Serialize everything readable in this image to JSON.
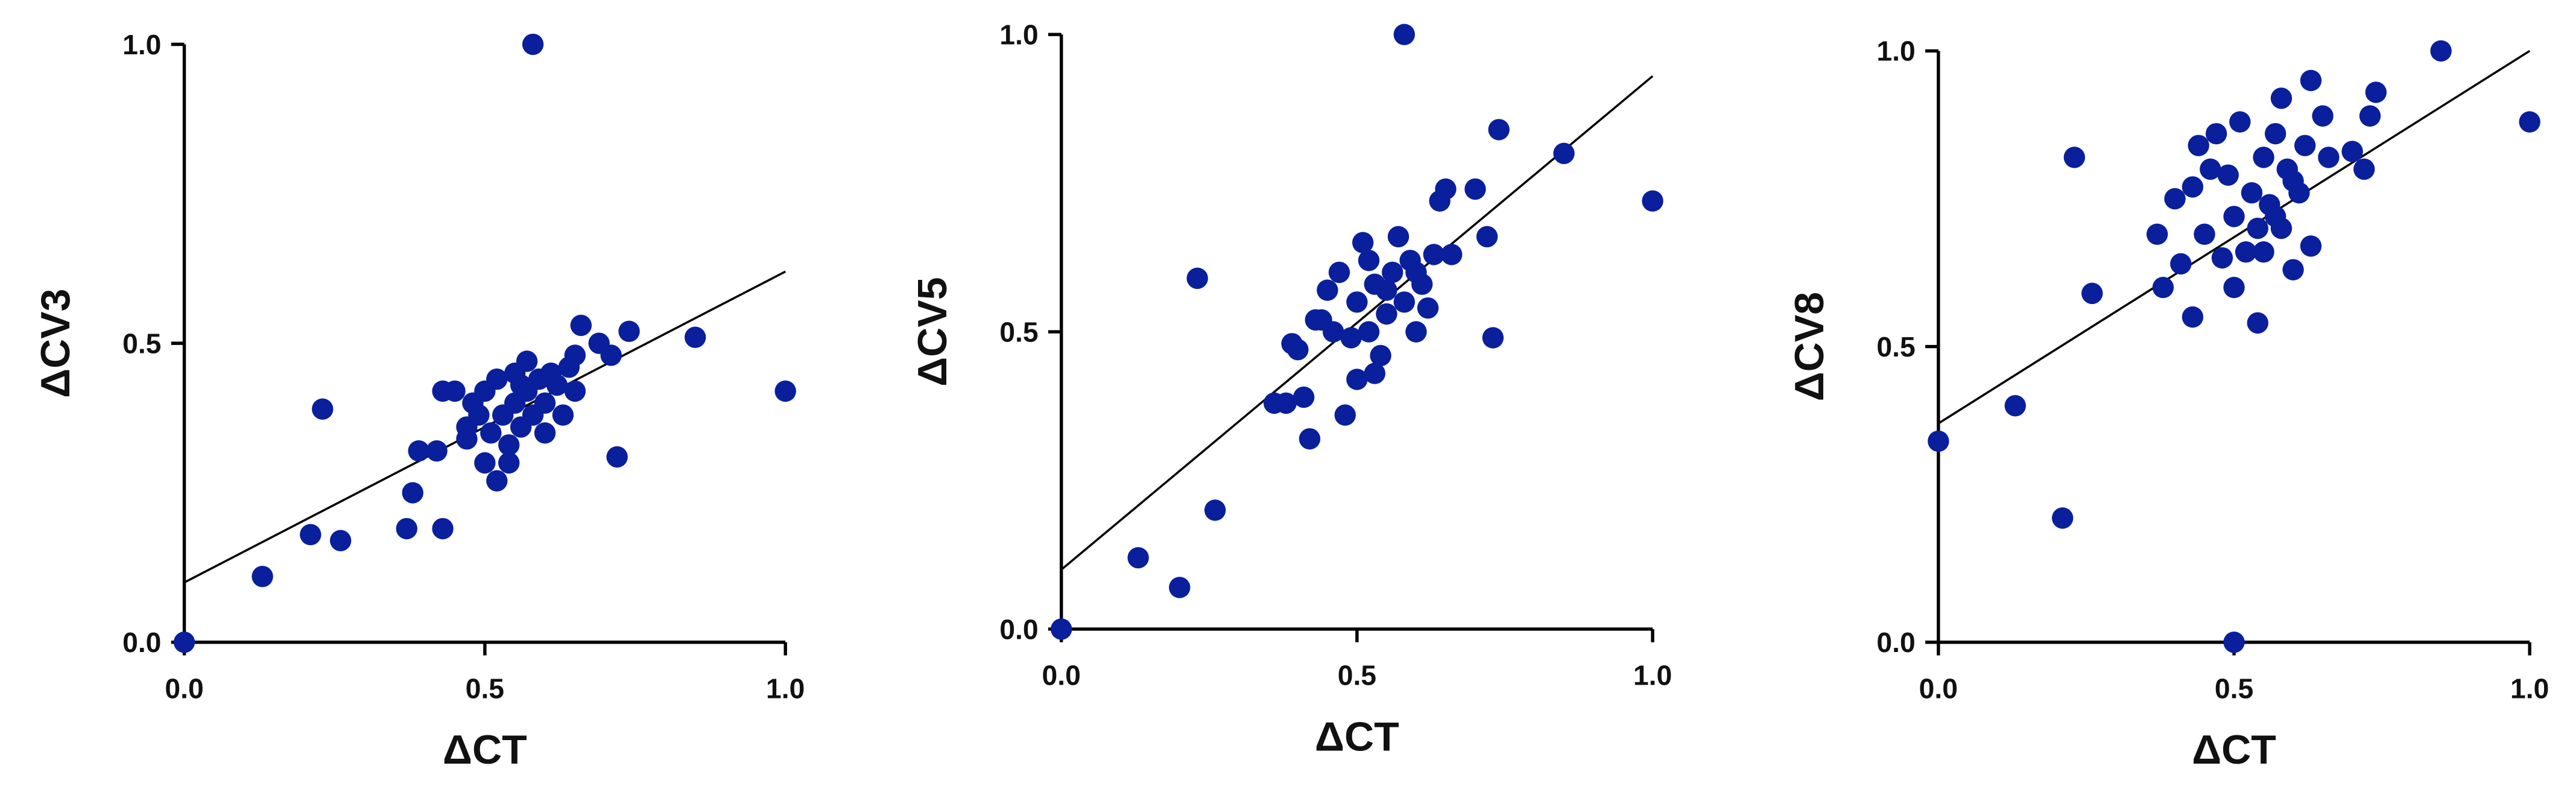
{
  "chart_data": [
    {
      "type": "scatter",
      "x_label": "ΔCT",
      "y_label": "ΔCV3",
      "color": "#0a1f9c",
      "xlim": [
        0,
        1
      ],
      "ylim": [
        0,
        1
      ],
      "xticks": [
        {
          "value": 0,
          "label": "0.0"
        },
        {
          "value": 0.5,
          "label": "0.5"
        },
        {
          "value": 1,
          "label": "1.0"
        }
      ],
      "yticks": [
        {
          "value": 0,
          "label": "0.0"
        },
        {
          "value": 0.5,
          "label": "0.5"
        },
        {
          "value": 1,
          "label": "1.0"
        }
      ],
      "x": [
        0,
        0.13,
        0.21,
        0.23,
        0.26,
        0.37,
        0.38,
        0.39,
        0.42,
        0.43,
        0.43,
        0.45,
        0.47,
        0.49,
        0.5,
        0.5,
        0.51,
        0.52,
        0.52,
        0.53,
        0.54,
        0.55,
        0.55,
        0.56,
        0.57,
        0.57,
        0.58,
        0.58,
        0.59,
        0.6,
        0.6,
        0.62,
        0.63,
        0.64,
        0.65,
        0.65,
        0.66,
        0.69,
        0.71,
        0.72,
        0.74,
        0.85,
        1.0,
        0.47,
        0.54,
        0.61,
        0.48,
        0.56
      ],
      "y": [
        0,
        0.11,
        0.18,
        0.39,
        0.17,
        0.19,
        0.25,
        0.32,
        0.32,
        0.19,
        0.42,
        0.42,
        0.34,
        0.38,
        0.42,
        0.3,
        0.35,
        0.27,
        0.44,
        0.38,
        0.3,
        0.4,
        0.45,
        0.36,
        0.47,
        0.42,
        1.0,
        0.38,
        0.44,
        0.35,
        0.4,
        0.43,
        0.38,
        0.46,
        0.48,
        0.42,
        0.53,
        0.5,
        0.48,
        0.31,
        0.52,
        0.51,
        0.42,
        0.36,
        0.33,
        0.45,
        0.4,
        0.43
      ],
      "trendline": {
        "x": [
          0,
          1
        ],
        "y": [
          0.1,
          0.62
        ]
      }
    },
    {
      "type": "scatter",
      "x_label": "ΔCT",
      "y_label": "ΔCV5",
      "color": "#0a1f9c",
      "xlim": [
        0,
        1
      ],
      "ylim": [
        0,
        1
      ],
      "xticks": [
        {
          "value": 0,
          "label": "0.0"
        },
        {
          "value": 0.5,
          "label": "0.5"
        },
        {
          "value": 1,
          "label": "1.0"
        }
      ],
      "yticks": [
        {
          "value": 0,
          "label": "0.0"
        },
        {
          "value": 0.5,
          "label": "0.5"
        },
        {
          "value": 1,
          "label": "1.0"
        }
      ],
      "x": [
        0,
        0.13,
        0.2,
        0.23,
        0.26,
        0.36,
        0.38,
        0.39,
        0.4,
        0.41,
        0.42,
        0.43,
        0.44,
        0.45,
        0.47,
        0.48,
        0.49,
        0.5,
        0.5,
        0.51,
        0.52,
        0.53,
        0.53,
        0.54,
        0.55,
        0.56,
        0.57,
        0.58,
        0.58,
        0.59,
        0.6,
        0.61,
        0.62,
        0.63,
        0.64,
        0.65,
        0.66,
        0.7,
        0.72,
        0.73,
        0.74,
        0.85,
        1.0,
        0.46,
        0.55,
        0.6,
        0.52
      ],
      "y": [
        0,
        0.12,
        0.07,
        0.59,
        0.2,
        0.38,
        0.38,
        0.48,
        0.47,
        0.39,
        0.32,
        0.52,
        0.52,
        0.57,
        0.6,
        0.36,
        0.49,
        0.42,
        0.55,
        0.65,
        0.5,
        0.43,
        0.58,
        0.46,
        0.53,
        0.6,
        0.66,
        1.0,
        0.55,
        0.62,
        0.5,
        0.58,
        0.54,
        0.63,
        0.72,
        0.74,
        0.63,
        0.74,
        0.66,
        0.49,
        0.84,
        0.8,
        0.72,
        0.5,
        0.57,
        0.6,
        0.62
      ],
      "trendline": {
        "x": [
          0,
          1
        ],
        "y": [
          0.1,
          0.93
        ]
      }
    },
    {
      "type": "scatter",
      "x_label": "ΔCT",
      "y_label": "ΔCV8",
      "color": "#0a1f9c",
      "xlim": [
        0,
        1
      ],
      "ylim": [
        0,
        1
      ],
      "xticks": [
        {
          "value": 0,
          "label": "0.0"
        },
        {
          "value": 0.5,
          "label": "0.5"
        },
        {
          "value": 1,
          "label": "1.0"
        }
      ],
      "yticks": [
        {
          "value": 0,
          "label": "0.0"
        },
        {
          "value": 0.5,
          "label": "0.5"
        },
        {
          "value": 1,
          "label": "1.0"
        }
      ],
      "x": [
        0,
        0.13,
        0.21,
        0.23,
        0.26,
        0.37,
        0.38,
        0.4,
        0.41,
        0.43,
        0.43,
        0.44,
        0.45,
        0.46,
        0.47,
        0.48,
        0.49,
        0.5,
        0.5,
        0.5,
        0.51,
        0.52,
        0.53,
        0.54,
        0.54,
        0.55,
        0.56,
        0.57,
        0.58,
        0.58,
        0.59,
        0.6,
        0.61,
        0.62,
        0.63,
        0.63,
        0.65,
        0.66,
        0.7,
        0.72,
        0.73,
        0.74,
        0.85,
        1.0,
        0.55,
        0.57,
        0.6
      ],
      "y": [
        0.34,
        0.4,
        0.21,
        0.82,
        0.59,
        0.69,
        0.6,
        0.75,
        0.64,
        0.55,
        0.77,
        0.84,
        0.69,
        0.8,
        0.86,
        0.65,
        0.79,
        0.0,
        0.6,
        0.72,
        0.88,
        0.66,
        0.76,
        0.54,
        0.7,
        0.82,
        0.74,
        0.86,
        0.92,
        0.7,
        0.8,
        0.63,
        0.76,
        0.84,
        0.95,
        0.67,
        0.89,
        0.82,
        0.83,
        0.8,
        0.89,
        0.93,
        1.0,
        0.88,
        0.66,
        0.72,
        0.78
      ],
      "trendline": {
        "x": [
          0,
          1
        ],
        "y": [
          0.37,
          1.0
        ]
      }
    }
  ]
}
